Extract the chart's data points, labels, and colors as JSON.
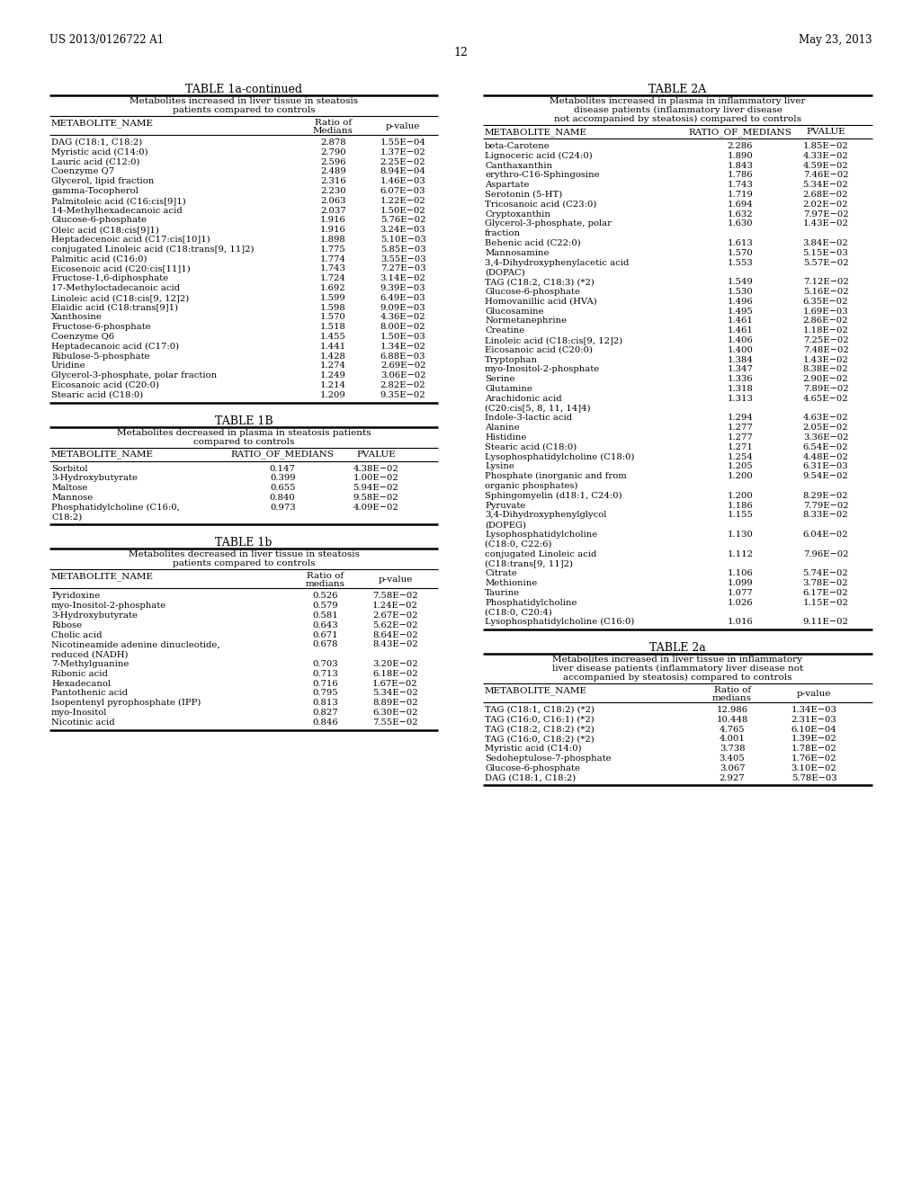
{
  "page_header_left": "US 2013/0126722 A1",
  "page_header_right": "May 23, 2013",
  "page_number": "12",
  "bg_color": "#ffffff",
  "table1a_title": "TABLE 1a-continued",
  "table1a_subtitle": "Metabolites increased in liver tissue in steatosis\npatients compared to controls",
  "table1a_col1": "METABOLITE_NAME",
  "table1a_col2": "Ratio of\nMedians",
  "table1a_col3": "p-value",
  "table1a_data": [
    [
      "DAG (C18:1, C18:2)",
      "2.878",
      "1.55E−04"
    ],
    [
      "Myristic acid (C14:0)",
      "2.790",
      "1.37E−02"
    ],
    [
      "Lauric acid (C12:0)",
      "2.596",
      "2.25E−02"
    ],
    [
      "Coenzyme Q7",
      "2.489",
      "8.94E−04"
    ],
    [
      "Glycerol, lipid fraction",
      "2.316",
      "1.46E−03"
    ],
    [
      "gamma-Tocopherol",
      "2.230",
      "6.07E−03"
    ],
    [
      "Palmitoleic acid (C16:cis[9]1)",
      "2.063",
      "1.22E−02"
    ],
    [
      "14-Methylhexadecanoic acid",
      "2.037",
      "1.50E−02"
    ],
    [
      "Glucose-6-phosphate",
      "1.916",
      "5.76E−02"
    ],
    [
      "Oleic acid (C18:cis[9]1)",
      "1.916",
      "3.24E−03"
    ],
    [
      "Heptadecenoic acid (C17:cis[10]1)",
      "1.898",
      "5.10E−03"
    ],
    [
      "conjugated Linoleic acid (C18:trans[9, 11]2)",
      "1.775",
      "5.85E−03"
    ],
    [
      "Palmitic acid (C16:0)",
      "1.774",
      "3.55E−03"
    ],
    [
      "Eicosenoic acid (C20:cis[11]1)",
      "1.743",
      "7.27E−03"
    ],
    [
      "Fructose-1,6-diphosphate",
      "1.724",
      "3.14E−02"
    ],
    [
      "17-Methyloctadecanoic acid",
      "1.692",
      "9.39E−03"
    ],
    [
      "Linoleic acid (C18:cis[9, 12]2)",
      "1.599",
      "6.49E−03"
    ],
    [
      "Elaidic acid (C18:trans[9]1)",
      "1.598",
      "9.09E−03"
    ],
    [
      "Xanthosine",
      "1.570",
      "4.36E−02"
    ],
    [
      "Fructose-6-phosphate",
      "1.518",
      "8.00E−02"
    ],
    [
      "Coenzyme Q6",
      "1.455",
      "1.50E−03"
    ],
    [
      "Heptadecanoic acid (C17:0)",
      "1.441",
      "1.34E−02"
    ],
    [
      "Ribulose-5-phosphate",
      "1.428",
      "6.88E−03"
    ],
    [
      "Uridine",
      "1.274",
      "2.69E−02"
    ],
    [
      "Glycerol-3-phosphate, polar fraction",
      "1.249",
      "3.06E−02"
    ],
    [
      "Eicosanoic acid (C20:0)",
      "1.214",
      "2.82E−02"
    ],
    [
      "Stearic acid (C18:0)",
      "1.209",
      "9.35E−02"
    ]
  ],
  "table1B_title": "TABLE 1B",
  "table1B_subtitle": "Metabolites decreased in plasma in steatosis patients\ncompared to controls",
  "table1B_col1": "METABOLITE_NAME",
  "table1B_col2": "RATIO_OF_MEDIANS",
  "table1B_col3": "PVALUE",
  "table1B_data": [
    [
      "Sorbitol",
      "0.147",
      "4.38E−02"
    ],
    [
      "3-Hydroxybutyrate",
      "0.399",
      "1.00E−02"
    ],
    [
      "Maltose",
      "0.655",
      "5.94E−02"
    ],
    [
      "Mannose",
      "0.840",
      "9.58E−02"
    ],
    [
      "Phosphatidylcholine (C16:0,",
      "0.973",
      "4.09E−02"
    ],
    [
      "C18:2)",
      "",
      ""
    ]
  ],
  "table1b_title": "TABLE 1b",
  "table1b_subtitle": "Metabolites decreased in liver tissue in steatosis\npatients compared to controls",
  "table1b_col1": "METABOLITE_NAME",
  "table1b_col2": "Ratio of\nmedians",
  "table1b_col3": "p-value",
  "table1b_data": [
    [
      "Pyridoxine",
      "0.526",
      "7.58E−02"
    ],
    [
      "myo-Inositol-2-phosphate",
      "0.579",
      "1.24E−02"
    ],
    [
      "3-Hydroxybutyrate",
      "0.581",
      "2.67E−02"
    ],
    [
      "Ribose",
      "0.643",
      "5.62E−02"
    ],
    [
      "Cholic acid",
      "0.671",
      "8.64E−02"
    ],
    [
      "Nicotineamide adenine dinucleotide,",
      "0.678",
      "8.43E−02"
    ],
    [
      "reduced (NADH)",
      "",
      ""
    ],
    [
      "7-Methylguanine",
      "0.703",
      "3.20E−02"
    ],
    [
      "Ribonic acid",
      "0.713",
      "6.18E−02"
    ],
    [
      "Hexadecanol",
      "0.716",
      "1.67E−02"
    ],
    [
      "Pantothenic acid",
      "0.795",
      "5.34E−02"
    ],
    [
      "Isopentenyl pyrophosphate (IPP)",
      "0.813",
      "8.89E−02"
    ],
    [
      "myo-Inositol",
      "0.827",
      "6.30E−02"
    ],
    [
      "Nicotinic acid",
      "0.846",
      "7.55E−02"
    ]
  ],
  "table2A_title": "TABLE 2A",
  "table2A_subtitle": "Metabolites increased in plasma in inflammatory liver\ndisease patients (inflammatory liver disease\nnot accompanied by steatosis) compared to controls",
  "table2A_col1": "METABOLITE_NAME",
  "table2A_col2": "RATIO_OF_MEDIANS",
  "table2A_col3": "PVALUE",
  "table2A_data": [
    [
      "beta-Carotene",
      "2.286",
      "1.85E−02"
    ],
    [
      "Lignoceric acid (C24:0)",
      "1.890",
      "4.33E−02"
    ],
    [
      "Canthaxanthin",
      "1.843",
      "4.59E−02"
    ],
    [
      "erythro-C16-Sphingosine",
      "1.786",
      "7.46E−02"
    ],
    [
      "Aspartate",
      "1.743",
      "5.34E−02"
    ],
    [
      "Serotonin (5-HT)",
      "1.719",
      "2.68E−02"
    ],
    [
      "Tricosanoic acid (C23:0)",
      "1.694",
      "2.02E−02"
    ],
    [
      "Cryptoxanthin",
      "1.632",
      "7.97E−02"
    ],
    [
      "Glycerol-3-phosphate, polar",
      "1.630",
      "1.43E−02"
    ],
    [
      "fraction",
      "",
      ""
    ],
    [
      "Behenic acid (C22:0)",
      "1.613",
      "3.84E−02"
    ],
    [
      "Mannosamine",
      "1.570",
      "5.15E−03"
    ],
    [
      "3,4-Dihydroxyphenylacetic acid",
      "1.553",
      "5.57E−02"
    ],
    [
      "(DOPAC)",
      "",
      ""
    ],
    [
      "TAG (C18:2, C18:3) (*2)",
      "1.549",
      "7.12E−02"
    ],
    [
      "Glucose-6-phosphate",
      "1.530",
      "5.16E−02"
    ],
    [
      "Homovanillic acid (HVA)",
      "1.496",
      "6.35E−02"
    ],
    [
      "Glucosamine",
      "1.495",
      "1.69E−03"
    ],
    [
      "Normetanephrine",
      "1.461",
      "2.86E−02"
    ],
    [
      "Creatine",
      "1.461",
      "1.18E−02"
    ],
    [
      "Linoleic acid (C18:cis[9, 12]2)",
      "1.406",
      "7.25E−02"
    ],
    [
      "Eicosanoic acid (C20:0)",
      "1.400",
      "7.48E−02"
    ],
    [
      "Tryptophan",
      "1.384",
      "1.43E−02"
    ],
    [
      "myo-Inositol-2-phosphate",
      "1.347",
      "8.38E−02"
    ],
    [
      "Serine",
      "1.336",
      "2.90E−02"
    ],
    [
      "Glutamine",
      "1.318",
      "7.89E−02"
    ],
    [
      "Arachidonic acid",
      "1.313",
      "4.65E−02"
    ],
    [
      "(C20:cis[5, 8, 11, 14]4)",
      "",
      ""
    ],
    [
      "Indole-3-lactic acid",
      "1.294",
      "4.63E−02"
    ],
    [
      "Alanine",
      "1.277",
      "2.05E−02"
    ],
    [
      "Histidine",
      "1.277",
      "3.36E−02"
    ],
    [
      "Stearic acid (C18:0)",
      "1.271",
      "6.54E−02"
    ],
    [
      "Lysophosphatidylcholine (C18:0)",
      "1.254",
      "4.48E−02"
    ],
    [
      "Lysine",
      "1.205",
      "6.31E−03"
    ],
    [
      "Phosphate (inorganic and from",
      "1.200",
      "9.54E−02"
    ],
    [
      "organic phosphates)",
      "",
      ""
    ],
    [
      "Sphingomyelin (d18:1, C24:0)",
      "1.200",
      "8.29E−02"
    ],
    [
      "Pyruvate",
      "1.186",
      "7.79E−02"
    ],
    [
      "3,4-Dihydroxyphenylglycol",
      "1.155",
      "8.33E−02"
    ],
    [
      "(DOPEG)",
      "",
      ""
    ],
    [
      "Lysophosphatidylcholine",
      "1.130",
      "6.04E−02"
    ],
    [
      "(C18:0, C22:6)",
      "",
      ""
    ],
    [
      "conjugated Linoleic acid",
      "1.112",
      "7.96E−02"
    ],
    [
      "(C18:trans[9, 11]2)",
      "",
      ""
    ],
    [
      "Citrate",
      "1.106",
      "5.74E−02"
    ],
    [
      "Methionine",
      "1.099",
      "3.78E−02"
    ],
    [
      "Taurine",
      "1.077",
      "6.17E−02"
    ],
    [
      "Phosphatidylcholine",
      "1.026",
      "1.15E−02"
    ],
    [
      "(C18:0, C20:4)",
      "",
      ""
    ],
    [
      "Lysophosphatidylcholine (C16:0)",
      "1.016",
      "9.11E−02"
    ]
  ],
  "table2a_title": "TABLE 2a",
  "table2a_subtitle": "Metabolites increased in liver tissue in inflammatory\nliver disease patients (inflammatory liver disease not\naccompanied by steatosis) compared to controls",
  "table2a_col1": "METABOLITE_NAME",
  "table2a_col2": "Ratio of\nmedians",
  "table2a_col3": "p-value",
  "table2a_data": [
    [
      "TAG (C18:1, C18:2) (*2)",
      "12.986",
      "1.34E−03"
    ],
    [
      "TAG (C16:0, C16:1) (*2)",
      "10.448",
      "2.31E−03"
    ],
    [
      "TAG (C18:2, C18:2) (*2)",
      "4.765",
      "6.10E−04"
    ],
    [
      "TAG (C16:0, C18:2) (*2)",
      "4.001",
      "1.39E−02"
    ],
    [
      "Myristic acid (C14:0)",
      "3.738",
      "1.78E−02"
    ],
    [
      "Sedoheptulose-7-phosphate",
      "3.405",
      "1.76E−02"
    ],
    [
      "Glucose-6-phosphate",
      "3.067",
      "3.10E−02"
    ],
    [
      "DAG (C18:1, C18:2)",
      "2.927",
      "5.78E−03"
    ]
  ]
}
